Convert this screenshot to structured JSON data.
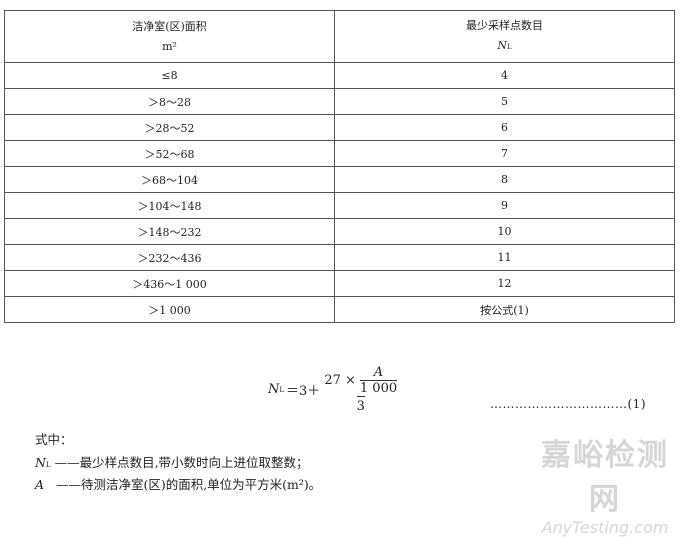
{
  "table": {
    "headers": [
      {
        "label": "洁净室(区)面积",
        "unit": "m²"
      },
      {
        "label": "最少采样点数目",
        "unit_main": "N",
        "unit_sub": "L"
      }
    ],
    "rows": [
      [
        "≤8",
        "4"
      ],
      [
        "＞8～28",
        "5"
      ],
      [
        "＞28～52",
        "6"
      ],
      [
        "＞52～68",
        "7"
      ],
      [
        "＞68～104",
        "8"
      ],
      [
        "＞104～148",
        "9"
      ],
      [
        "＞148～232",
        "10"
      ],
      [
        "＞232～436",
        "11"
      ],
      [
        "＞436～1 000",
        "12"
      ],
      [
        "＞1 000",
        "按公式(1)"
      ]
    ]
  },
  "formula": {
    "lhs_main": "N",
    "lhs_sub": "L",
    "eq": "＝3＋",
    "num_prefix": "27 ×",
    "inner_num": "A",
    "inner_den": "1 000",
    "den": "3",
    "number": "……………………………(1)"
  },
  "legend": {
    "intro": "式中：",
    "items": [
      {
        "sym_main": "N",
        "sym_sub": "L",
        "text": "——最少样点数目,带小数时向上进位取整数；"
      },
      {
        "sym_main": "A",
        "sym_sub": "",
        "text": "——待测洁净室(区)的面积,单位为平方米(m²)。"
      }
    ]
  },
  "watermark": {
    "cn": "嘉峪检测网",
    "en": "AnyTesting.com"
  }
}
